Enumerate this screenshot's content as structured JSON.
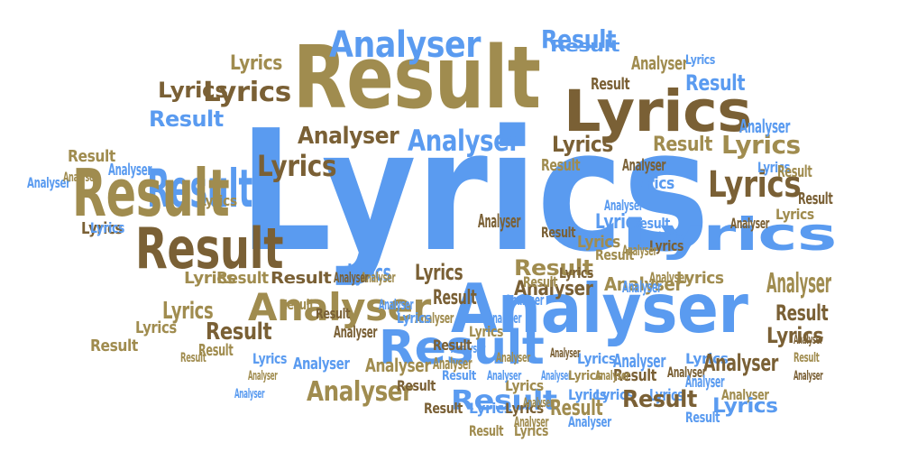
{
  "words": [
    {
      "text": "Lyrics",
      "color": "#5a9bf0"
    },
    {
      "text": "Result",
      "color": "#a08c4f"
    },
    {
      "text": "Analyser",
      "color": "#5a9bf0"
    },
    {
      "text": "Lyrics",
      "color": "#7a6035"
    },
    {
      "text": "Result",
      "color": "#5a9bf0"
    },
    {
      "text": "Result",
      "color": "#a08c4f"
    },
    {
      "text": "Analyser",
      "color": "#a08c4f"
    },
    {
      "text": "Analyser",
      "color": "#5a9bf0"
    },
    {
      "text": "Lyrics",
      "color": "#5a9bf0"
    },
    {
      "text": "Result",
      "color": "#5a9bf0"
    },
    {
      "text": "Result",
      "color": "#7a6035"
    },
    {
      "text": "Lyrics",
      "color": "#7a6035"
    },
    {
      "text": "Lyrics",
      "color": "#7a6035"
    },
    {
      "text": "Analyser",
      "color": "#7a6035"
    },
    {
      "text": "Analyser",
      "color": "#5a9bf0"
    },
    {
      "text": "Lyrics",
      "color": "#7a6035"
    },
    {
      "text": "Lyrics",
      "color": "#a08c4f"
    },
    {
      "text": "Result",
      "color": "#a08c4f"
    },
    {
      "text": "Result",
      "color": "#5a9bf0"
    },
    {
      "text": "Lyrics",
      "color": "#7a6035"
    },
    {
      "text": "Result",
      "color": "#5a9bf0"
    },
    {
      "text": "Analyser",
      "color": "#a08c4f"
    },
    {
      "text": "Lyrics",
      "color": "#5a9bf0"
    },
    {
      "text": "Result",
      "color": "#a08c4f"
    },
    {
      "text": "Analyser",
      "color": "#7a6035"
    },
    {
      "text": "Analyser",
      "color": "#a08c4f"
    },
    {
      "text": "Lyrics",
      "color": "#7a6035"
    },
    {
      "text": "Result",
      "color": "#7a6035"
    },
    {
      "text": "Analyser",
      "color": "#7a6035"
    },
    {
      "text": "Lyrics",
      "color": "#a08c4f"
    },
    {
      "text": "Result",
      "color": "#5a9bf0"
    },
    {
      "text": "Lyrics",
      "color": "#7a6035"
    },
    {
      "text": "Lyrics",
      "color": "#7a6035"
    },
    {
      "text": "Lyrics",
      "color": "#a08c4f"
    },
    {
      "text": "Lyrics",
      "color": "#5a9bf0"
    },
    {
      "text": "Result",
      "color": "#7a6035"
    },
    {
      "text": "Result",
      "color": "#a08c4f"
    },
    {
      "text": "Analyser",
      "color": "#5a9bf0"
    },
    {
      "text": "Result",
      "color": "#5a9bf0"
    },
    {
      "text": "Lyrics",
      "color": "#5a9bf0"
    },
    {
      "text": "Result",
      "color": "#7a6035"
    },
    {
      "text": "Lyrics",
      "color": "#7a6035"
    },
    {
      "text": "Lyrics",
      "color": "#a08c4f"
    },
    {
      "text": "Result",
      "color": "#a08c4f"
    },
    {
      "text": "Analyser",
      "color": "#7a6035"
    },
    {
      "text": "Analyser",
      "color": "#7a6035"
    },
    {
      "text": "Analyser",
      "color": "#a08c4f"
    },
    {
      "text": "Result",
      "color": "#7a6035"
    },
    {
      "text": "Result",
      "color": "#7a6035"
    },
    {
      "text": "Lyrics",
      "color": "#5a9bf0"
    },
    {
      "text": "Lyrics",
      "color": "#5a9bf0"
    },
    {
      "text": "Lyrics",
      "color": "#5a9bf0"
    },
    {
      "text": "Result",
      "color": "#a08c4f"
    },
    {
      "text": "Analyser",
      "color": "#7a6035"
    },
    {
      "text": "Analyser",
      "color": "#5a9bf0"
    },
    {
      "text": "Result",
      "color": "#a08c4f"
    },
    {
      "text": "Analyser",
      "color": "#5a9bf0"
    },
    {
      "text": "Analyser",
      "color": "#a08c4f"
    },
    {
      "text": "Lyrics",
      "color": "#5a9bf0"
    },
    {
      "text": "Lyrics",
      "color": "#a08c4f"
    },
    {
      "text": "Result",
      "color": "#7a6035"
    },
    {
      "text": "Analyser",
      "color": "#a08c4f"
    },
    {
      "text": "Result",
      "color": "#5a9bf0"
    },
    {
      "text": "Analyser",
      "color": "#a08c4f"
    },
    {
      "text": "Analyser",
      "color": "#5a9bf0"
    },
    {
      "text": "Lyrics",
      "color": "#a08c4f"
    },
    {
      "text": "Result",
      "color": "#a08c4f"
    },
    {
      "text": "Lyrics",
      "color": "#a08c4f"
    },
    {
      "text": "Result",
      "color": "#a08c4f"
    },
    {
      "text": "Result",
      "color": "#7a6035"
    },
    {
      "text": "Analyser",
      "color": "#7a6035"
    },
    {
      "text": "Result",
      "color": "#a08c4f"
    },
    {
      "text": "Result",
      "color": "#a08c4f"
    },
    {
      "text": "Lyrics",
      "color": "#5a9bf0"
    },
    {
      "text": "Analyser",
      "color": "#5a9bf0"
    },
    {
      "text": "Analyser",
      "color": "#a08c4f"
    },
    {
      "text": "Analyser",
      "color": "#a08c4f"
    },
    {
      "text": "Result",
      "color": "#7a6035"
    },
    {
      "text": "Result",
      "color": "#7a6035"
    },
    {
      "text": "Lyrics",
      "color": "#5a9bf0"
    },
    {
      "text": "Lyrics",
      "color": "#7a6035"
    },
    {
      "text": "Result",
      "color": "#a08c4f"
    },
    {
      "text": "Analyser",
      "color": "#a08c4f"
    },
    {
      "text": "Result",
      "color": "#a08c4f"
    },
    {
      "text": "Lyrics",
      "color": "#a08c4f"
    },
    {
      "text": "Analyser",
      "color": "#5a9bf0"
    },
    {
      "text": "Analyser",
      "color": "#a08c4f"
    },
    {
      "text": "Lyrics",
      "color": "#a08c4f"
    },
    {
      "text": "Lyrics",
      "color": "#5a9bf0"
    },
    {
      "text": "Analyser",
      "color": "#7a6035"
    },
    {
      "text": "Analyser",
      "color": "#7a6035"
    },
    {
      "text": "Analyser",
      "color": "#5a9bf0"
    },
    {
      "text": "Analyser",
      "color": "#a08c4f"
    },
    {
      "text": "Result",
      "color": "#5a9bf0"
    },
    {
      "text": "Lyrics",
      "color": "#5a9bf0"
    },
    {
      "text": "Analyser",
      "color": "#5a9bf0"
    },
    {
      "text": "Analyser",
      "color": "#a08c4f"
    },
    {
      "text": "Lyrics",
      "color": "#5a9bf0"
    },
    {
      "text": "Lyrics",
      "color": "#5a9bf0"
    },
    {
      "text": "Result",
      "color": "#7a6035"
    },
    {
      "text": "Lyrics",
      "color": "#a08c4f"
    },
    {
      "text": "Analyser",
      "color": "#5a9bf0"
    },
    {
      "text": "Lyrics",
      "color": "#a08c4f"
    },
    {
      "text": "Analyser",
      "color": "#a08c4f"
    },
    {
      "text": "Analyser",
      "color": "#5a9bf0"
    },
    {
      "text": "Result",
      "color": "#5a9bf0"
    },
    {
      "text": "Lyrics",
      "color": "#5a9bf0"
    },
    {
      "text": "Analyser",
      "color": "#5a9bf0"
    },
    {
      "text": "Analyser",
      "color": "#7a6035"
    },
    {
      "text": "Analyser",
      "color": "#a08c4f"
    },
    {
      "text": "Analyser",
      "color": "#5a9bf0"
    },
    {
      "text": "Analyser",
      "color": "#7a6035"
    },
    {
      "text": "Lyrics",
      "color": "#5a9bf0"
    },
    {
      "text": "Analyser",
      "color": "#5a9bf0"
    },
    {
      "text": "Result",
      "color": "#5a9bf0"
    },
    {
      "text": "Lyrics",
      "color": "#7a6035"
    },
    {
      "text": "Analyser",
      "color": "#a08c4f"
    },
    {
      "text": "Result",
      "color": "#a08c4f"
    },
    {
      "text": "Lyrics",
      "color": "#a08c4f"
    },
    {
      "text": "Result",
      "color": "#7a6035"
    },
    {
      "text": "Lyrics",
      "color": "#7a6035"
    },
    {
      "text": "Result",
      "color": "#a08c4f"
    },
    {
      "text": "Analyser",
      "color": "#5a9bf0"
    },
    {
      "text": "Analyser",
      "color": "#5a9bf0"
    },
    {
      "text": "Lyrics",
      "color": "#a08c4f"
    },
    {
      "text": "Result",
      "color": "#7a6035"
    },
    {
      "text": "Analyser",
      "color": "#a08c4f"
    },
    {
      "text": "Lyrics",
      "color": "#5a9bf0"
    },
    {
      "text": "Analyser",
      "color": "#5a9bf0"
    },
    {
      "text": "Analyser",
      "color": "#a08c4f"
    },
    {
      "text": "Analyser",
      "color": "#7a6035"
    },
    {
      "text": "Result",
      "color": "#7a6035"
    },
    {
      "text": "Result",
      "color": "#a08c4f"
    }
  ]
}
